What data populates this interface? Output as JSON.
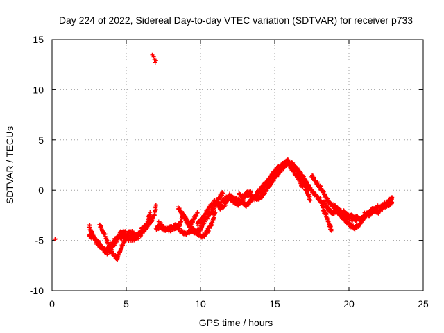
{
  "chart_data": {
    "type": "scatter",
    "title": "Day 224 of 2022, Sidereal Day-to-day VTEC variation (SDTVAR) for receiver p733",
    "xlabel": "GPS time / hours",
    "ylabel": "SDTVAR / TECUs",
    "xlim": [
      0,
      25
    ],
    "ylim": [
      -10,
      15
    ],
    "xticks": [
      0,
      5,
      10,
      15,
      20,
      25
    ],
    "yticks": [
      -10,
      -5,
      0,
      5,
      10,
      15
    ],
    "grid": true,
    "marker": "plus",
    "series_color": "#ff0000",
    "series": [
      {
        "name": "SDTVAR",
        "points": [
          [
            0.2,
            -4.9
          ],
          [
            0.25,
            -4.85
          ],
          [
            6.75,
            13.5
          ],
          [
            6.85,
            13.3
          ],
          [
            6.9,
            13.0
          ],
          [
            6.95,
            12.7
          ],
          [
            7.0,
            12.9
          ]
        ],
        "traces": [
          [
            [
              2.5,
              -4.5
            ],
            [
              2.8,
              -4.7
            ],
            [
              3.0,
              -5.0
            ],
            [
              3.3,
              -5.6
            ],
            [
              3.6,
              -6.0
            ],
            [
              3.9,
              -5.7
            ],
            [
              4.2,
              -5.0
            ],
            [
              4.5,
              -4.6
            ],
            [
              4.8,
              -4.7
            ],
            [
              5.1,
              -4.8
            ],
            [
              5.4,
              -4.6
            ],
            [
              5.7,
              -4.5
            ],
            [
              6.0,
              -4.2
            ],
            [
              6.3,
              -3.8
            ],
            [
              6.6,
              -3.2
            ],
            [
              6.9,
              -2.5
            ],
            [
              7.0,
              -1.5
            ]
          ],
          [
            [
              3.2,
              -3.5
            ],
            [
              3.5,
              -4.2
            ],
            [
              3.8,
              -5.5
            ],
            [
              4.1,
              -6.3
            ],
            [
              4.4,
              -6.8
            ],
            [
              4.6,
              -6.0
            ],
            [
              4.8,
              -5.2
            ],
            [
              5.1,
              -4.3
            ],
            [
              5.4,
              -4.2
            ],
            [
              5.7,
              -4.8
            ],
            [
              6.0,
              -4.3
            ],
            [
              6.4,
              -3.6
            ],
            [
              6.6,
              -2.2
            ]
          ],
          [
            [
              2.5,
              -3.5
            ],
            [
              2.7,
              -4.4
            ],
            [
              3.0,
              -5.2
            ],
            [
              3.4,
              -5.8
            ],
            [
              3.7,
              -6.2
            ],
            [
              4.0,
              -5.8
            ],
            [
              4.3,
              -5.2
            ],
            [
              4.6,
              -4.2
            ],
            [
              4.9,
              -4.2
            ],
            [
              5.2,
              -4.9
            ],
            [
              5.6,
              -4.8
            ],
            [
              6.1,
              -3.8
            ],
            [
              6.5,
              -3.2
            ],
            [
              6.8,
              -2.6
            ]
          ],
          [
            [
              7.0,
              -3.8
            ],
            [
              7.3,
              -3.6
            ],
            [
              7.6,
              -3.9
            ],
            [
              8.0,
              -3.7
            ],
            [
              8.3,
              -3.8
            ],
            [
              8.6,
              -3.4
            ],
            [
              8.8,
              -2.5
            ],
            [
              9.0,
              -2.8
            ],
            [
              9.2,
              -3.5
            ],
            [
              9.5,
              -3.0
            ],
            [
              9.8,
              -2.2
            ]
          ],
          [
            [
              7.2,
              -3.2
            ],
            [
              7.5,
              -3.7
            ],
            [
              7.9,
              -4.1
            ],
            [
              8.3,
              -3.4
            ],
            [
              8.6,
              -4.0
            ],
            [
              9.0,
              -4.3
            ],
            [
              9.4,
              -4.0
            ],
            [
              9.8,
              -4.4
            ],
            [
              10.2,
              -4.6
            ],
            [
              10.5,
              -4.0
            ],
            [
              10.8,
              -3.2
            ],
            [
              11.0,
              -2.2
            ]
          ],
          [
            [
              8.5,
              -1.8
            ],
            [
              8.8,
              -2.4
            ],
            [
              9.1,
              -3.2
            ],
            [
              9.4,
              -3.8
            ],
            [
              9.7,
              -4.2
            ],
            [
              10.0,
              -3.9
            ],
            [
              10.3,
              -3.0
            ],
            [
              10.6,
              -2.4
            ],
            [
              10.9,
              -1.8
            ],
            [
              11.2,
              -0.9
            ],
            [
              11.5,
              -0.3
            ]
          ],
          [
            [
              9.8,
              -3.4
            ],
            [
              10.1,
              -2.9
            ],
            [
              10.4,
              -2.2
            ],
            [
              10.7,
              -1.5
            ],
            [
              11.0,
              -1.1
            ],
            [
              11.3,
              -1.8
            ],
            [
              11.6,
              -1.5
            ],
            [
              11.9,
              -0.7
            ],
            [
              12.2,
              -1.1
            ],
            [
              12.5,
              -1.5
            ],
            [
              12.8,
              -1.0
            ],
            [
              13.1,
              -0.5
            ],
            [
              13.4,
              -0.2
            ]
          ],
          [
            [
              11.2,
              -1.6
            ],
            [
              11.6,
              -0.9
            ],
            [
              12.0,
              -0.5
            ],
            [
              12.4,
              -0.9
            ],
            [
              12.8,
              -1.2
            ],
            [
              13.1,
              -1.5
            ],
            [
              13.4,
              -1.0
            ],
            [
              13.7,
              -0.6
            ],
            [
              14.0,
              -0.2
            ],
            [
              14.3,
              0.4
            ],
            [
              14.6,
              1.0
            ],
            [
              14.9,
              1.6
            ],
            [
              15.2,
              2.2
            ],
            [
              15.5,
              2.5
            ],
            [
              15.8,
              2.8
            ],
            [
              16.1,
              2.3
            ],
            [
              16.4,
              1.6
            ],
            [
              16.7,
              0.9
            ],
            [
              16.9,
              0.3
            ]
          ],
          [
            [
              12.6,
              -0.4
            ],
            [
              12.9,
              -0.6
            ],
            [
              13.2,
              -0.2
            ],
            [
              13.5,
              -0.7
            ],
            [
              13.8,
              -0.9
            ],
            [
              14.1,
              -0.6
            ],
            [
              14.4,
              0.0
            ],
            [
              14.7,
              0.6
            ],
            [
              15.0,
              1.2
            ],
            [
              15.3,
              1.8
            ],
            [
              15.6,
              2.3
            ],
            [
              15.9,
              2.8
            ],
            [
              16.2,
              2.5
            ],
            [
              16.5,
              2.0
            ],
            [
              16.8,
              1.5
            ],
            [
              17.1,
              0.8
            ],
            [
              17.3,
              0.0
            ]
          ],
          [
            [
              13.8,
              -0.3
            ],
            [
              14.1,
              0.2
            ],
            [
              14.4,
              0.7
            ],
            [
              14.7,
              1.3
            ],
            [
              15.0,
              1.8
            ],
            [
              15.3,
              2.1
            ],
            [
              15.6,
              2.6
            ],
            [
              15.9,
              2.9
            ],
            [
              16.2,
              2.6
            ],
            [
              16.5,
              2.1
            ],
            [
              16.8,
              1.3
            ],
            [
              17.0,
              0.5
            ],
            [
              17.2,
              -0.3
            ],
            [
              17.4,
              -1.0
            ]
          ],
          [
            [
              16.6,
              1.7
            ],
            [
              16.9,
              1.3
            ],
            [
              17.2,
              0.6
            ],
            [
              17.5,
              -0.1
            ],
            [
              17.8,
              -0.6
            ],
            [
              18.1,
              -1.0
            ],
            [
              18.3,
              -2.0
            ],
            [
              18.5,
              -2.6
            ],
            [
              18.7,
              -3.5
            ],
            [
              18.8,
              -3.9
            ]
          ],
          [
            [
              17.5,
              1.4
            ],
            [
              17.8,
              0.8
            ],
            [
              18.1,
              0.2
            ],
            [
              18.4,
              -0.6
            ],
            [
              18.7,
              -1.3
            ],
            [
              19.0,
              -1.6
            ],
            [
              19.3,
              -1.9
            ],
            [
              19.6,
              -2.4
            ],
            [
              19.9,
              -2.6
            ],
            [
              20.2,
              -2.6
            ],
            [
              20.5,
              -3.0
            ]
          ],
          [
            [
              18.3,
              -1.2
            ],
            [
              18.6,
              -1.9
            ],
            [
              18.9,
              -2.3
            ],
            [
              19.2,
              -2.1
            ],
            [
              19.5,
              -2.6
            ],
            [
              19.8,
              -3.1
            ],
            [
              20.1,
              -3.5
            ],
            [
              20.4,
              -3.8
            ],
            [
              20.7,
              -3.4
            ],
            [
              21.0,
              -2.8
            ],
            [
              21.3,
              -2.2
            ],
            [
              21.6,
              -1.9
            ],
            [
              21.9,
              -1.7
            ],
            [
              22.2,
              -1.6
            ],
            [
              22.5,
              -1.3
            ],
            [
              22.8,
              -1.0
            ],
            [
              22.9,
              -0.8
            ]
          ],
          [
            [
              19.6,
              -2.1
            ],
            [
              19.9,
              -2.5
            ],
            [
              20.2,
              -2.9
            ],
            [
              20.5,
              -2.7
            ],
            [
              20.8,
              -2.9
            ],
            [
              21.1,
              -2.3
            ],
            [
              21.4,
              -2.4
            ],
            [
              21.7,
              -2.0
            ],
            [
              22.0,
              -2.2
            ],
            [
              22.3,
              -1.7
            ],
            [
              22.6,
              -1.5
            ],
            [
              22.9,
              -1.2
            ]
          ]
        ]
      }
    ]
  }
}
